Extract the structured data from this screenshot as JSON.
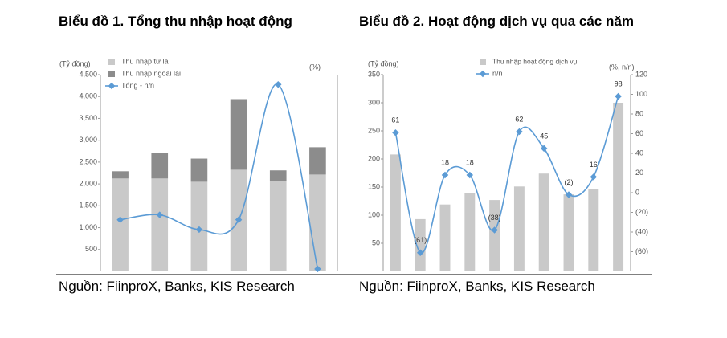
{
  "chart_data": [
    {
      "type": "bar",
      "stacked": true,
      "title": "Biểu đồ 1. Tổng thu nhập hoạt động",
      "y_label": "(Tỷ đồng)",
      "y2_label": "(%)",
      "categories": [
        null,
        null,
        null,
        null,
        null,
        null
      ],
      "series": [
        {
          "name": "Thu nhập từ lãi",
          "type": "bar",
          "color": "#c9c9c9",
          "values": [
            2125,
            2125,
            2050,
            2325,
            2070,
            2215
          ]
        },
        {
          "name": "Thu nhập ngoài lãi",
          "type": "bar",
          "color": "#8c8c8c",
          "values": [
            165,
            585,
            530,
            1615,
            240,
            625
          ]
        },
        {
          "name": "Tổng - n/n",
          "type": "line",
          "axis": "y2",
          "color": "#5b9bd5",
          "values": [
            1,
            3,
            -3,
            1,
            56,
            -19
          ]
        }
      ],
      "ylim": [
        0,
        4500
      ],
      "yticks": [
        {
          "value": 500,
          "label": "500"
        },
        {
          "value": 1000,
          "label": "1,000"
        },
        {
          "value": 1500,
          "label": "1,500"
        },
        {
          "value": 2000,
          "label": "2,000"
        },
        {
          "value": 2500,
          "label": "2,500"
        },
        {
          "value": 3000,
          "label": "3,000"
        },
        {
          "value": 3500,
          "label": "3,500"
        },
        {
          "value": 4000,
          "label": "4,000"
        },
        {
          "value": 4500,
          "label": "4,500"
        }
      ],
      "y2lim": [
        -20,
        60
      ],
      "source": "Nguồn: FiinproX, Banks, KIS Research"
    },
    {
      "type": "bar",
      "stacked": false,
      "title": "Biểu đồ 2. Hoạt động dịch vụ qua các năm",
      "y_label": "(Tỷ đồng)",
      "y2_label": "(%, n/n)",
      "categories": [
        null,
        null,
        null,
        null,
        null,
        null,
        null,
        null,
        null,
        null
      ],
      "series": [
        {
          "name": "Thu nhập hoạt động dịch vụ",
          "type": "bar",
          "color": "#c9c9c9",
          "values": [
            208,
            93,
            119,
            139,
            127,
            151,
            174,
            137,
            147,
            300
          ]
        },
        {
          "name": "n/n",
          "type": "line",
          "axis": "y2",
          "color": "#5b9bd5",
          "values": [
            61,
            -61,
            18,
            18,
            -38,
            62,
            45,
            -2,
            16,
            98
          ],
          "value_labels": [
            "61",
            "(61)",
            "18",
            "18",
            "(38)",
            "62",
            "45",
            "(2)",
            "16",
            "98"
          ]
        }
      ],
      "ylim": [
        0,
        350
      ],
      "yticks": [
        50,
        100,
        150,
        200,
        250,
        300,
        350
      ],
      "y2lim": [
        -80,
        120
      ],
      "y2ticks": [
        {
          "value": -60,
          "label": "(60)"
        },
        {
          "value": -40,
          "label": "(40)"
        },
        {
          "value": -20,
          "label": "(20)"
        },
        0,
        20,
        40,
        60,
        80,
        100,
        120
      ],
      "source": "Nguồn: FiinproX, Banks, KIS Research"
    }
  ]
}
